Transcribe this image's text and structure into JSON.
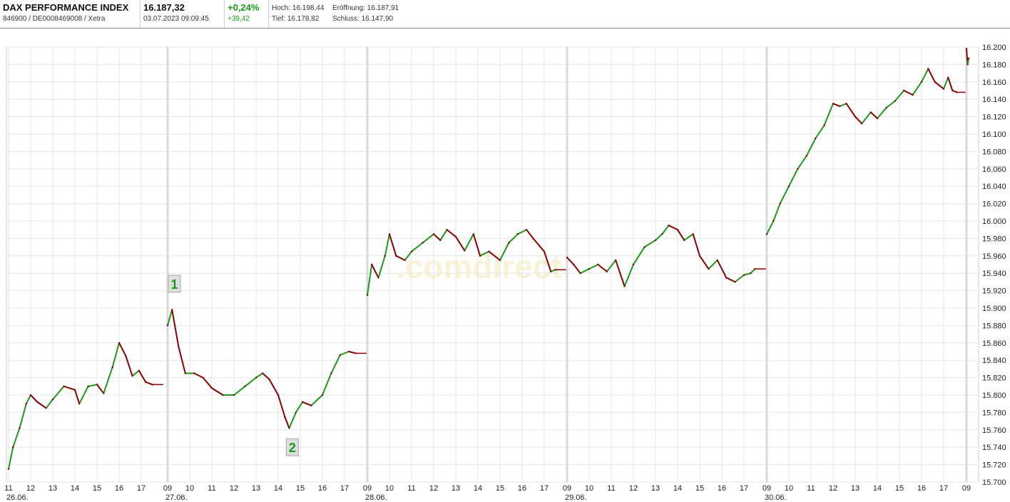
{
  "header": {
    "name": "DAX PERFORMANCE INDEX",
    "identifiers": "846900 / DE0008469008 / Xetra",
    "price": "16.187,32",
    "timestamp": "03.07.2023 09:09:45",
    "change_pct": "+0,24%",
    "change_abs": "+39,42",
    "high_label": "Hoch:",
    "high_value": "16.198,44",
    "open_label": "Eröffnung:",
    "open_value": "16.187,91",
    "low_label": "Tief:",
    "low_value": "16.178,82",
    "close_label": "Schluss:",
    "close_value": "16.147,90"
  },
  "watermark": ".comdirect",
  "colors": {
    "up": "#1a9a1a",
    "down": "#8b0000",
    "grid": "#e6e6e6",
    "separator": "#d9d9d9",
    "accent_green": "#1a9a1a"
  },
  "annotations": [
    {
      "label": "1",
      "at": "27.06. 09:00",
      "value": 15905,
      "side": "above"
    },
    {
      "label": "2",
      "at": "27.06. 14:20",
      "value": 15758,
      "side": "below"
    }
  ],
  "chart_data": {
    "type": "line",
    "style": "intraday candlestick-like line, green up / red down",
    "y_axis": {
      "position": "right",
      "ylim": [
        15700,
        16200
      ],
      "ticks": [
        "16.200",
        "16.180",
        "16.160",
        "16.140",
        "16.120",
        "16.100",
        "16.080",
        "16.060",
        "16.040",
        "16.020",
        "16.000",
        "15.980",
        "15.960",
        "15.940",
        "15.920",
        "15.900",
        "15.880",
        "15.860",
        "15.840",
        "15.820",
        "15.800",
        "15.780",
        "15.760",
        "15.740",
        "15.720",
        "15.700"
      ],
      "tick_values": [
        16200,
        16180,
        16160,
        16140,
        16120,
        16100,
        16080,
        16060,
        16040,
        16020,
        16000,
        15980,
        15960,
        15940,
        15920,
        15900,
        15880,
        15860,
        15840,
        15820,
        15800,
        15780,
        15760,
        15740,
        15720,
        15700
      ]
    },
    "x_axis": {
      "days": [
        "26.06.",
        "27.06.",
        "28.06.",
        "29.06.",
        "30.06."
      ],
      "hours": [
        "09",
        "10",
        "11",
        "12",
        "13",
        "14",
        "15",
        "16",
        "17"
      ],
      "first_day_hours": [
        "11",
        "12",
        "13",
        "14",
        "15",
        "16",
        "17"
      ],
      "last_day_label": "09"
    },
    "grid": true,
    "series": [
      {
        "day": "26.06.",
        "points": [
          [
            11.0,
            15715
          ],
          [
            11.2,
            15740
          ],
          [
            11.5,
            15762
          ],
          [
            11.8,
            15790
          ],
          [
            12.0,
            15800
          ],
          [
            12.3,
            15792
          ],
          [
            12.7,
            15785
          ],
          [
            13.0,
            15795
          ],
          [
            13.5,
            15810
          ],
          [
            14.0,
            15806
          ],
          [
            14.2,
            15790
          ],
          [
            14.6,
            15810
          ],
          [
            15.0,
            15812
          ],
          [
            15.3,
            15802
          ],
          [
            15.7,
            15832
          ],
          [
            16.0,
            15860
          ],
          [
            16.3,
            15845
          ],
          [
            16.6,
            15822
          ],
          [
            16.9,
            15828
          ],
          [
            17.2,
            15815
          ],
          [
            17.5,
            15812
          ]
        ]
      },
      {
        "day": "27.06.",
        "points": [
          [
            9.0,
            15880
          ],
          [
            9.2,
            15898
          ],
          [
            9.5,
            15855
          ],
          [
            9.8,
            15825
          ],
          [
            10.2,
            15825
          ],
          [
            10.6,
            15820
          ],
          [
            11.0,
            15808
          ],
          [
            11.5,
            15800
          ],
          [
            12.0,
            15800
          ],
          [
            12.5,
            15810
          ],
          [
            13.0,
            15820
          ],
          [
            13.3,
            15825
          ],
          [
            13.6,
            15818
          ],
          [
            14.0,
            15800
          ],
          [
            14.3,
            15775
          ],
          [
            14.5,
            15762
          ],
          [
            14.8,
            15780
          ],
          [
            15.1,
            15792
          ],
          [
            15.5,
            15788
          ],
          [
            16.0,
            15800
          ],
          [
            16.4,
            15825
          ],
          [
            16.8,
            15846
          ],
          [
            17.2,
            15850
          ],
          [
            17.5,
            15848
          ]
        ]
      },
      {
        "day": "28.06.",
        "points": [
          [
            9.0,
            15915
          ],
          [
            9.2,
            15950
          ],
          [
            9.5,
            15935
          ],
          [
            9.8,
            15960
          ],
          [
            10.0,
            15985
          ],
          [
            10.3,
            15960
          ],
          [
            10.7,
            15955
          ],
          [
            11.0,
            15965
          ],
          [
            11.5,
            15975
          ],
          [
            12.0,
            15985
          ],
          [
            12.3,
            15978
          ],
          [
            12.6,
            15990
          ],
          [
            13.0,
            15982
          ],
          [
            13.4,
            15966
          ],
          [
            13.8,
            15985
          ],
          [
            14.1,
            15960
          ],
          [
            14.5,
            15965
          ],
          [
            15.0,
            15955
          ],
          [
            15.4,
            15975
          ],
          [
            15.8,
            15985
          ],
          [
            16.2,
            15990
          ],
          [
            16.5,
            15980
          ],
          [
            17.0,
            15965
          ],
          [
            17.3,
            15942
          ],
          [
            17.5,
            15944
          ]
        ]
      },
      {
        "day": "29.06.",
        "points": [
          [
            9.0,
            15958
          ],
          [
            9.3,
            15950
          ],
          [
            9.6,
            15940
          ],
          [
            10.0,
            15945
          ],
          [
            10.4,
            15950
          ],
          [
            10.8,
            15942
          ],
          [
            11.2,
            15955
          ],
          [
            11.6,
            15925
          ],
          [
            12.0,
            15950
          ],
          [
            12.5,
            15970
          ],
          [
            13.0,
            15978
          ],
          [
            13.3,
            15985
          ],
          [
            13.6,
            15995
          ],
          [
            14.0,
            15990
          ],
          [
            14.3,
            15978
          ],
          [
            14.7,
            15985
          ],
          [
            15.0,
            15960
          ],
          [
            15.4,
            15945
          ],
          [
            15.8,
            15955
          ],
          [
            16.2,
            15935
          ],
          [
            16.6,
            15930
          ],
          [
            17.0,
            15938
          ],
          [
            17.3,
            15940
          ],
          [
            17.5,
            15945
          ]
        ]
      },
      {
        "day": "30.06.",
        "points": [
          [
            9.0,
            15985
          ],
          [
            9.3,
            16000
          ],
          [
            9.6,
            16020
          ],
          [
            10.0,
            16040
          ],
          [
            10.4,
            16060
          ],
          [
            10.8,
            16075
          ],
          [
            11.2,
            16095
          ],
          [
            11.6,
            16110
          ],
          [
            12.0,
            16135
          ],
          [
            12.3,
            16132
          ],
          [
            12.6,
            16135
          ],
          [
            13.0,
            16120
          ],
          [
            13.3,
            16112
          ],
          [
            13.7,
            16125
          ],
          [
            14.0,
            16118
          ],
          [
            14.4,
            16130
          ],
          [
            14.8,
            16138
          ],
          [
            15.2,
            16150
          ],
          [
            15.6,
            16145
          ],
          [
            16.0,
            16160
          ],
          [
            16.3,
            16175
          ],
          [
            16.6,
            16160
          ],
          [
            17.0,
            16152
          ],
          [
            17.2,
            16165
          ],
          [
            17.4,
            16150
          ],
          [
            17.6,
            16148
          ]
        ]
      },
      {
        "day": "03.07.",
        "points": [
          [
            9.0,
            16198
          ],
          [
            9.05,
            16180
          ],
          [
            9.1,
            16187
          ]
        ]
      }
    ],
    "flat_segments": [
      {
        "day": "26.06.",
        "from": 17.5,
        "to": 17.99,
        "value": 15812
      },
      {
        "day": "27.06.",
        "from": 17.5,
        "to": 17.99,
        "value": 15848
      },
      {
        "day": "28.06.",
        "from": 17.5,
        "to": 17.99,
        "value": 15944
      },
      {
        "day": "29.06.",
        "from": 17.5,
        "to": 17.99,
        "value": 15945
      },
      {
        "day": "30.06.",
        "from": 17.6,
        "to": 17.99,
        "value": 16148
      }
    ]
  }
}
